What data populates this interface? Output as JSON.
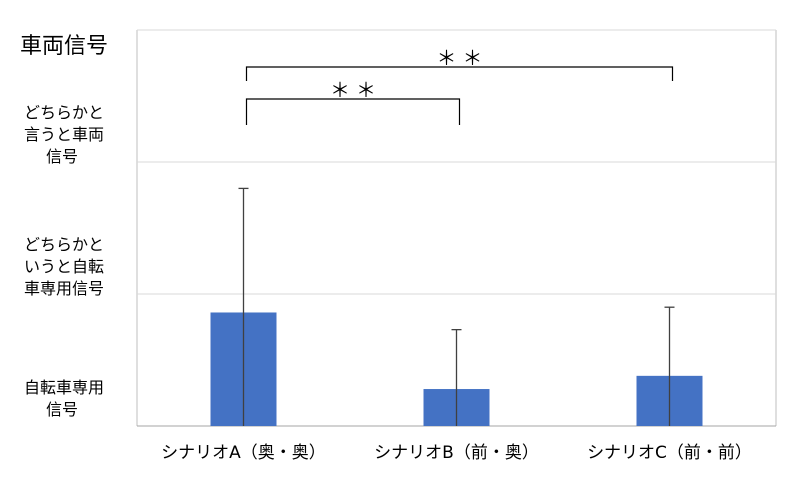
{
  "chart_data": {
    "type": "bar",
    "categories": [
      "シナリオA（奥・奥）",
      "シナリオB（前・奥）",
      "シナリオC（前・前）"
    ],
    "series": [
      {
        "values": [
          0.86,
          0.28,
          0.38
        ],
        "error": [
          0.94,
          0.45,
          0.52
        ],
        "color": "#4472c4"
      }
    ],
    "ylim": [
      0,
      3
    ],
    "y_ticks": [
      {
        "value": 0,
        "lines": [
          "自転車専用",
          "信号"
        ]
      },
      {
        "value": 1,
        "lines": [
          "どちらかと",
          "いうと自転",
          "車専用信号"
        ]
      },
      {
        "value": 2,
        "lines": [
          "どちらかと",
          "言うと車両",
          "信号"
        ]
      },
      {
        "value": 3,
        "lines": [
          "車両信号"
        ]
      }
    ],
    "significance": [
      {
        "from": 0,
        "to": 2,
        "label": "＊＊"
      },
      {
        "from": 0,
        "to": 1,
        "label": "＊＊"
      }
    ],
    "grid": true,
    "legend": "none"
  }
}
